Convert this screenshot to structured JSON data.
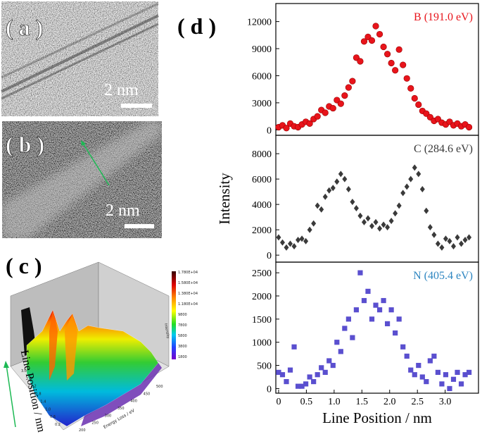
{
  "panels": [
    {
      "label": "( a )",
      "scale": "2 nm"
    },
    {
      "label": "( b )",
      "scale": "2 nm"
    },
    {
      "label": "( c )",
      "y_axis_label": "Line Position / nm",
      "x_axis_label": "Energy Loss / eV",
      "z_axis_label": "Intensity",
      "colorbar": [
        "1.780E+04",
        "1.580E+04",
        "1.380E+04",
        "1.180E+04",
        "9800",
        "7800",
        "5800",
        "3800",
        "1800"
      ],
      "line_ticks": [
        "3.0",
        "2.6",
        "2.2",
        "1.8",
        "1.4",
        "1.0",
        "0.6",
        "0.2"
      ],
      "energy_ticks": [
        "200",
        "250",
        "300",
        "350",
        "400",
        "450",
        "500"
      ]
    },
    {
      "label": "( d )"
    }
  ],
  "chart_data": [
    {
      "type": "scatter",
      "x": [
        0.0,
        0.07,
        0.14,
        0.21,
        0.28,
        0.35,
        0.42,
        0.49,
        0.56,
        0.63,
        0.7,
        0.77,
        0.84,
        0.91,
        0.98,
        1.05,
        1.12,
        1.19,
        1.26,
        1.33,
        1.4,
        1.47,
        1.54,
        1.61,
        1.68,
        1.75,
        1.82,
        1.89,
        1.96,
        2.03,
        2.1,
        2.17,
        2.24,
        2.31,
        2.38,
        2.45,
        2.52,
        2.59,
        2.66,
        2.73,
        2.8,
        2.87,
        2.94,
        3.01,
        3.08,
        3.15,
        3.22,
        3.29,
        3.36,
        3.43
      ],
      "series": [
        {
          "name": "B (191.0 eV)",
          "color": "#e8141b",
          "marker": "circle",
          "values": [
            300,
            500,
            200,
            700,
            400,
            300,
            600,
            900,
            700,
            1200,
            1500,
            2200,
            1900,
            2600,
            2400,
            3300,
            2900,
            3800,
            4700,
            5400,
            8000,
            7600,
            9800,
            10300,
            9900,
            11500,
            10600,
            9200,
            8400,
            7400,
            6600,
            8900,
            7200,
            5700,
            4600,
            3500,
            2800,
            2100,
            1800,
            1400,
            1000,
            1200,
            800,
            600,
            900,
            500,
            700,
            400,
            600,
            300
          ]
        }
      ],
      "xlim": [
        -0.05,
        3.6
      ],
      "ylim": [
        -600,
        14000
      ],
      "yticks": [
        0,
        3000,
        6000,
        9000,
        12000
      ]
    },
    {
      "type": "scatter",
      "x": [
        0.0,
        0.07,
        0.14,
        0.21,
        0.28,
        0.35,
        0.42,
        0.49,
        0.56,
        0.63,
        0.7,
        0.77,
        0.84,
        0.91,
        0.98,
        1.05,
        1.12,
        1.19,
        1.26,
        1.33,
        1.4,
        1.47,
        1.54,
        1.61,
        1.68,
        1.75,
        1.82,
        1.89,
        1.96,
        2.03,
        2.1,
        2.17,
        2.24,
        2.31,
        2.38,
        2.45,
        2.52,
        2.59,
        2.66,
        2.73,
        2.8,
        2.87,
        2.94,
        3.01,
        3.08,
        3.15,
        3.22,
        3.29,
        3.36,
        3.43
      ],
      "series": [
        {
          "name": "C (284.6 eV)",
          "color": "#3a3a3a",
          "marker": "diamond",
          "values": [
            1400,
            1000,
            600,
            900,
            700,
            1200,
            1300,
            1100,
            2000,
            2500,
            3900,
            3600,
            4600,
            5100,
            5300,
            5800,
            6400,
            6000,
            5200,
            4200,
            3700,
            3100,
            2600,
            2900,
            2300,
            2600,
            2100,
            2400,
            2200,
            2700,
            3300,
            3900,
            4900,
            5400,
            6000,
            6900,
            6400,
            5200,
            3500,
            2200,
            1600,
            900,
            600,
            1300,
            1100,
            700,
            1400,
            900,
            1200,
            1400
          ]
        }
      ],
      "xlim": [
        -0.05,
        3.6
      ],
      "ylim": [
        -550,
        9450
      ],
      "yticks": [
        0,
        2000,
        4000,
        6000,
        8000
      ],
      "ylabel": "Intensity"
    },
    {
      "type": "scatter",
      "x": [
        0.0,
        0.07,
        0.14,
        0.21,
        0.28,
        0.35,
        0.42,
        0.49,
        0.56,
        0.63,
        0.7,
        0.77,
        0.84,
        0.91,
        0.98,
        1.05,
        1.12,
        1.19,
        1.26,
        1.33,
        1.4,
        1.47,
        1.54,
        1.61,
        1.68,
        1.75,
        1.82,
        1.89,
        1.96,
        2.03,
        2.1,
        2.17,
        2.24,
        2.31,
        2.38,
        2.45,
        2.52,
        2.59,
        2.66,
        2.73,
        2.8,
        2.87,
        2.94,
        3.01,
        3.08,
        3.15,
        3.22,
        3.29,
        3.36,
        3.43
      ],
      "series": [
        {
          "name": "N (405.4 eV)",
          "color": "#5a4fcf",
          "name_color": "#2e86c1",
          "marker": "square",
          "values": [
            350,
            300,
            150,
            400,
            900,
            50,
            50,
            100,
            250,
            150,
            300,
            450,
            350,
            600,
            500,
            1000,
            800,
            1300,
            1500,
            1100,
            1700,
            2500,
            1900,
            2100,
            1500,
            1800,
            1700,
            1900,
            1400,
            1700,
            1200,
            1500,
            900,
            700,
            400,
            300,
            500,
            250,
            150,
            600,
            700,
            350,
            100,
            300,
            0,
            200,
            350,
            100,
            300,
            350
          ]
        }
      ],
      "xlim": [
        -0.05,
        3.6
      ],
      "ylim": [
        -100,
        2730
      ],
      "yticks": [
        0,
        500,
        1000,
        1500,
        2000,
        2500
      ],
      "xticks": [
        0,
        0.5,
        {
          "value": 1,
          "label": "1.0"
        },
        1.5,
        {
          "value": 2,
          "label": "2.0"
        },
        2.5,
        {
          "value": 3,
          "label": "3.0"
        }
      ],
      "xlabel": "Line Position / nm"
    }
  ]
}
